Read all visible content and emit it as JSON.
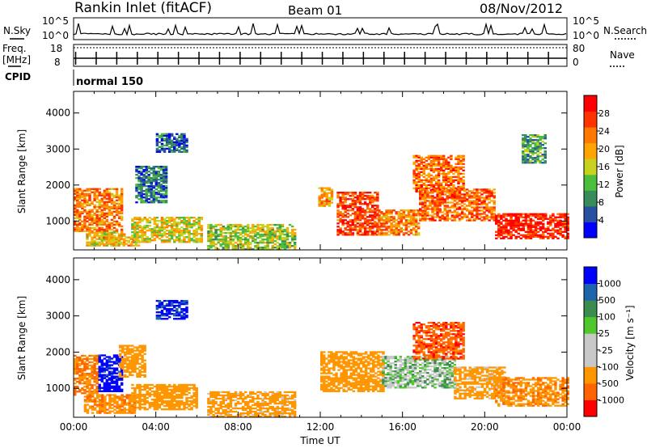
{
  "header": {
    "station": "Rankin Inlet (fitACF)",
    "beam": "Beam 01",
    "date": "08/Nov/2012"
  },
  "sky_panel": {
    "left_label": "N.Sky",
    "left_ticks": [
      "10^5",
      "10^0"
    ],
    "right_ticks": [
      "10^5",
      "10^0"
    ],
    "right_label": "N.Search"
  },
  "freq_panel": {
    "left_label_1": "Freq.",
    "left_label_2": "[MHz]",
    "left_ticks": [
      "18",
      "8"
    ],
    "right_ticks": [
      "80",
      "0"
    ],
    "right_label": "Nave"
  },
  "cpid": {
    "label": "CPID",
    "mode": "normal 150"
  },
  "colors": {
    "power": [
      "#0000ff",
      "#2850a0",
      "#378c5a",
      "#4bbe3c",
      "#c8d21e",
      "#ffa500",
      "#ff7800",
      "#ff3200",
      "#ff0000"
    ],
    "velocity": [
      "#ff0000",
      "#ff6400",
      "#ff9600",
      "#c8c8c8",
      "#c8c8c8",
      "#50c82d",
      "#3c8c50",
      "#1e64aa",
      "#0000ff"
    ],
    "ground_scatter": "#c8c8c8"
  },
  "chart_data": [
    {
      "type": "heatmap",
      "panel": "power",
      "xlabel": "",
      "ylabel": "Slant Range [km]",
      "xlim": [
        0,
        24
      ],
      "ylim": [
        200,
        4600
      ],
      "yticks": [
        "1000",
        "2000",
        "3000",
        "4000"
      ],
      "colorbar": {
        "label": "Power [dB]",
        "ticks": [
          "4",
          "8",
          "12",
          "16",
          "20",
          "24",
          "28"
        ],
        "range": [
          0,
          30
        ]
      },
      "regions": [
        {
          "t": [
            0.0,
            2.4
          ],
          "r": [
            700,
            1900
          ],
          "v": 22
        },
        {
          "t": [
            0.6,
            2.5
          ],
          "r": [
            300,
            700
          ],
          "v": 17
        },
        {
          "t": [
            1.3,
            3.2
          ],
          "r": [
            300,
            550
          ],
          "v": 19
        },
        {
          "t": [
            2.8,
            6.2
          ],
          "r": [
            400,
            1100
          ],
          "v": 16
        },
        {
          "t": [
            3.0,
            4.5
          ],
          "r": [
            1500,
            2500
          ],
          "v": 6
        },
        {
          "t": [
            4.0,
            5.5
          ],
          "r": [
            2900,
            3400
          ],
          "v": 5
        },
        {
          "t": [
            6.5,
            10.8
          ],
          "r": [
            200,
            900
          ],
          "v": 14
        },
        {
          "t": [
            11.9,
            12.6
          ],
          "r": [
            1400,
            1900
          ],
          "v": 20
        },
        {
          "t": [
            12.8,
            14.8
          ],
          "r": [
            600,
            1800
          ],
          "v": 26
        },
        {
          "t": [
            14.8,
            16.8
          ],
          "r": [
            600,
            1300
          ],
          "v": 22
        },
        {
          "t": [
            16.5,
            19.0
          ],
          "r": [
            1800,
            2800
          ],
          "v": 23
        },
        {
          "t": [
            16.8,
            20.5
          ],
          "r": [
            1000,
            1900
          ],
          "v": 24
        },
        {
          "t": [
            20.5,
            24.0
          ],
          "r": [
            500,
            1200
          ],
          "v": 28
        },
        {
          "t": [
            21.8,
            23.0
          ],
          "r": [
            2600,
            3400
          ],
          "v": 9
        }
      ]
    },
    {
      "type": "heatmap",
      "panel": "velocity",
      "xlabel": "Time UT",
      "ylabel": "Slant Range [km]",
      "xlim": [
        0,
        24
      ],
      "ylim": [
        200,
        4600
      ],
      "xticks": [
        "00:00",
        "04:00",
        "08:00",
        "12:00",
        "16:00",
        "20:00",
        "00:00"
      ],
      "yticks": [
        "1000",
        "2000",
        "3000",
        "4000"
      ],
      "colorbar": {
        "label": "Velocity [m s⁻¹]",
        "ticks": [
          "-1000",
          "-500",
          "-100",
          "-25",
          "25",
          "100",
          "500",
          "1000"
        ],
        "range": [
          -1000,
          1000
        ]
      },
      "regions": [
        {
          "t": [
            0.0,
            1.2
          ],
          "r": [
            800,
            1900
          ],
          "v": -500
        },
        {
          "t": [
            1.2,
            2.4
          ],
          "r": [
            900,
            1900
          ],
          "v": 800
        },
        {
          "t": [
            2.2,
            3.5
          ],
          "r": [
            1300,
            2200
          ],
          "v": -300
        },
        {
          "t": [
            0.5,
            3.0
          ],
          "r": [
            300,
            800
          ],
          "v": -400
        },
        {
          "t": [
            2.8,
            6.0
          ],
          "r": [
            400,
            1100
          ],
          "v": -300
        },
        {
          "t": [
            4.0,
            5.5
          ],
          "r": [
            2900,
            3400
          ],
          "v": 600
        },
        {
          "t": [
            6.5,
            10.8
          ],
          "r": [
            200,
            900
          ],
          "v": -200
        },
        {
          "t": [
            12.0,
            15.0
          ],
          "r": [
            900,
            2000
          ],
          "v": -300
        },
        {
          "t": [
            15.0,
            18.5
          ],
          "r": [
            1000,
            1900
          ],
          "v": 0
        },
        {
          "t": [
            16.5,
            19.0
          ],
          "r": [
            1800,
            2800
          ],
          "v": -800
        },
        {
          "t": [
            18.5,
            21.0
          ],
          "r": [
            700,
            1600
          ],
          "v": -200
        },
        {
          "t": [
            20.5,
            24.0
          ],
          "r": [
            500,
            1300
          ],
          "v": -400
        }
      ]
    }
  ]
}
